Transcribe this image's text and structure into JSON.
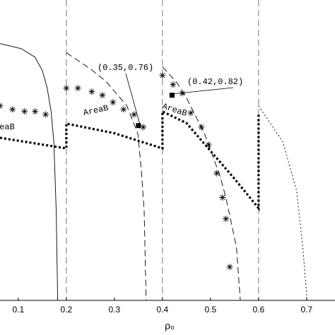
{
  "chart_data": {
    "type": "line",
    "xlabel": "ρ₀",
    "xlim": [
      0.062,
      0.759
    ],
    "ylim": [
      0.415,
      1.008
    ],
    "xticks": [
      0.1,
      0.2,
      0.3,
      0.4,
      0.5,
      0.6,
      0.7
    ],
    "vlines": [
      0.2,
      0.4,
      0.6
    ],
    "color": "#000000",
    "series": [
      {
        "style": "solid",
        "x": [
          0.062,
          0.106,
          0.135,
          0.15,
          0.16,
          0.168,
          0.174,
          0.179,
          0.182
        ],
        "values": [
          0.922,
          0.912,
          0.895,
          0.869,
          0.835,
          0.79,
          0.729,
          0.59,
          0.415
        ]
      },
      {
        "style": "dashed",
        "x": [
          0.2,
          0.25,
          0.282,
          0.326,
          0.349,
          0.356,
          0.362,
          0.366
        ],
        "values": [
          0.904,
          0.872,
          0.848,
          0.799,
          0.743,
          0.673,
          0.59,
          0.415
        ]
      },
      {
        "style": "dashed",
        "x": [
          0.4,
          0.43,
          0.451,
          0.488,
          0.52,
          0.532,
          0.554,
          0.562
        ],
        "values": [
          0.876,
          0.845,
          0.813,
          0.743,
          0.66,
          0.618,
          0.52,
          0.415
        ]
      },
      {
        "style": "dotted",
        "x": [
          0.6,
          0.65,
          0.679,
          0.692,
          0.701
        ],
        "values": [
          0.799,
          0.729,
          0.632,
          0.52,
          0.415
        ]
      },
      {
        "style": "thick-dotted",
        "x": [
          0.062,
          0.2,
          0.2,
          0.3,
          0.4,
          0.4,
          0.45,
          0.5,
          0.55,
          0.6,
          0.6
        ],
        "values": [
          0.736,
          0.715,
          0.764,
          0.745,
          0.715,
          0.788,
          0.765,
          0.71,
          0.655,
          0.597,
          0.785
        ]
      },
      {
        "style": "stars",
        "x": [
          0.062,
          0.088,
          0.113,
          0.135,
          0.157,
          0.2,
          0.224,
          0.253,
          0.275,
          0.297,
          0.319,
          0.341,
          0.36,
          0.4,
          0.422,
          0.441,
          0.459,
          0.481,
          0.496,
          0.513,
          0.525,
          0.532,
          0.54
        ],
        "values": [
          0.799,
          0.792,
          0.788,
          0.788,
          0.782,
          0.834,
          0.834,
          0.827,
          0.82,
          0.806,
          0.792,
          0.782,
          0.757,
          0.859,
          0.841,
          0.824,
          0.785,
          0.757,
          0.722,
          0.666,
          0.618,
          0.576,
          0.481
        ]
      }
    ],
    "points": [
      {
        "text": "(0.35,0.76)",
        "x": 0.35,
        "y": 0.76
      },
      {
        "text": "(0.42,0.82)",
        "x": 0.42,
        "y": 0.82
      }
    ],
    "annotations": [
      "reaB",
      "AreaB",
      "AreaB"
    ]
  }
}
